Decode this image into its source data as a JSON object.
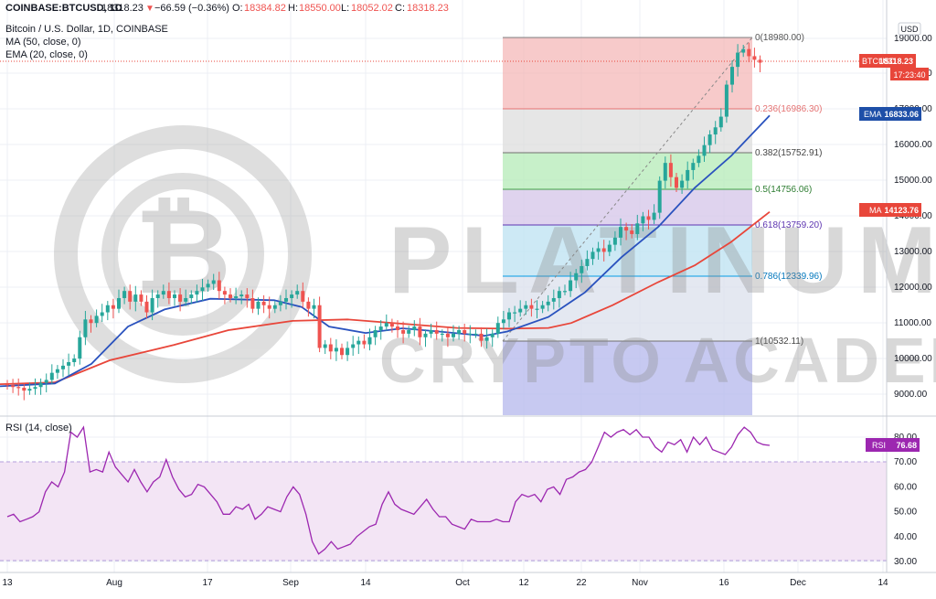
{
  "header": {
    "symbol": "COINBASE:BTCUSD, 1D",
    "last_label": "18318.23",
    "change_text": "−66.59 (−0.36%)",
    "open_label": "O:",
    "open_value": "18384.82",
    "high_label": "H:",
    "high_value": "18550.00",
    "low_label": "L:",
    "low_value": "18052.02",
    "close_label": "C:",
    "close_value": "18318.23",
    "title": "Bitcoin / U.S. Dollar, 1D, COINBASE",
    "ma_label": "MA (50, close, 0)",
    "ema_label": "EMA (20, close, 0)",
    "rsi_label": "RSI (14, close)"
  },
  "price_axis": {
    "unit_label": "USD",
    "ticks": [
      "19000.00",
      "18000.00",
      "17000.00",
      "16000.00",
      "15000.00",
      "14000.00",
      "13000.00",
      "12000.00",
      "11000.00",
      "10000.00",
      "9000.00"
    ],
    "tags": {
      "last_symbol": "BTCUSD",
      "last_value": "18318.23",
      "countdown": "17:23:40",
      "ema_label": "EMA",
      "ema_value": "16833.06",
      "ma_label": "MA",
      "ma_value": "14123.76"
    }
  },
  "rsi_axis": {
    "ticks": [
      "80.00",
      "70.00",
      "60.00",
      "50.00",
      "40.00",
      "30.00"
    ],
    "tag_label": "RSI",
    "tag_value": "76.68"
  },
  "time_axis": {
    "labels": [
      "13",
      "Aug",
      "17",
      "Sep",
      "14",
      "Oct",
      "12",
      "22",
      "Nov",
      "16",
      "Dec",
      "14"
    ]
  },
  "fib_labels": {
    "f0": "0(18980.00)",
    "f236": "0.236(16986.30)",
    "f382": "0.382(15752.91)",
    "f5": "0.5(14756.06)",
    "f618": "0.618(13759.20)",
    "f786": "0.786(12339.96)",
    "f1": "1(10532.11)"
  },
  "watermark": {
    "line1": "PLATINUM",
    "line2": "CRYPTO ACADEMY"
  },
  "colors": {
    "up": "#26a69a",
    "down": "#ef5350",
    "ma": "#e8463a",
    "ema": "#2a52be",
    "rsi": "#9c27b0",
    "rsi_band": "#f3e5f5",
    "tag_red": "#e8463a",
    "tag_blue": "#1e4fa8"
  },
  "chart_data": {
    "type": "candlestick",
    "title": "Bitcoin / U.S. Dollar, 1D, COINBASE",
    "x_range": [
      "2020-07-13",
      "2020-12-14"
    ],
    "y_range": [
      8500,
      19300
    ],
    "candle_closes": [
      9250,
      9200,
      9180,
      9100,
      9150,
      9200,
      9320,
      9400,
      9600,
      9700,
      9800,
      9900,
      10000,
      10600,
      11100,
      11000,
      11200,
      11300,
      11500,
      11400,
      11700,
      11900,
      11600,
      11800,
      11600,
      11300,
      11700,
      11800,
      11900,
      11700,
      11800,
      11600,
      11700,
      11800,
      11900,
      12000,
      12100,
      12200,
      11900,
      11800,
      11700,
      11750,
      11800,
      11700,
      11400,
      11600,
      11500,
      11400,
      11500,
      11600,
      11700,
      11800,
      11900,
      11600,
      11400,
      11500,
      10300,
      10400,
      10200,
      10300,
      10100,
      10300,
      10400,
      10500,
      10400,
      10600,
      10800,
      10900,
      11000,
      10900,
      10800,
      10700,
      10800,
      10900,
      10600,
      10700,
      10800,
      10700,
      10700,
      10600,
      10700,
      10800,
      10700,
      10700,
      10700,
      10500,
      10600,
      10700,
      11000,
      11100,
      11300,
      11300,
      11400,
      11500,
      11400,
      11400,
      11500,
      11600,
      11700,
      11900,
      11900,
      12200,
      12400,
      12600,
      12800,
      13000,
      13100,
      13000,
      13200,
      13400,
      13700,
      13600,
      13500,
      13800,
      14000,
      13900,
      14100,
      15000,
      15500,
      15100,
      14800,
      15000,
      15300,
      15500,
      15700,
      16000,
      16300,
      16500,
      16800,
      17700,
      18200,
      18600,
      18700,
      18500,
      18400,
      18318.23
    ],
    "ma50_points": [
      [
        0,
        9280
      ],
      [
        60,
        9330
      ],
      [
        120,
        9950
      ],
      [
        190,
        10380
      ],
      [
        250,
        10800
      ],
      [
        320,
        11060
      ],
      [
        380,
        11100
      ],
      [
        440,
        10980
      ],
      [
        500,
        10860
      ],
      [
        555,
        10840
      ],
      [
        600,
        10860
      ],
      [
        625,
        11000
      ],
      [
        670,
        11500
      ],
      [
        720,
        12150
      ],
      [
        760,
        12620
      ],
      [
        800,
        13280
      ],
      [
        842,
        14124
      ]
    ],
    "ema20_points": [
      [
        0,
        9220
      ],
      [
        60,
        9300
      ],
      [
        100,
        9850
      ],
      [
        140,
        10900
      ],
      [
        180,
        11380
      ],
      [
        230,
        11680
      ],
      [
        300,
        11640
      ],
      [
        330,
        11450
      ],
      [
        360,
        10900
      ],
      [
        400,
        10720
      ],
      [
        440,
        10850
      ],
      [
        480,
        10760
      ],
      [
        530,
        10640
      ],
      [
        555,
        10760
      ],
      [
        600,
        11170
      ],
      [
        640,
        11860
      ],
      [
        680,
        12850
      ],
      [
        720,
        13700
      ],
      [
        760,
        14800
      ],
      [
        800,
        15700
      ],
      [
        842,
        16833
      ]
    ],
    "fibonacci": {
      "from": 10532.11,
      "to": 18980.0,
      "levels": [
        [
          0,
          18980.0
        ],
        [
          0.236,
          16986.3
        ],
        [
          0.382,
          15752.91
        ],
        [
          0.5,
          14756.06
        ],
        [
          0.618,
          13759.2
        ],
        [
          0.786,
          12339.96
        ],
        [
          1,
          10532.11
        ]
      ]
    },
    "rsi_range": [
      25,
      86
    ],
    "rsi_values": [
      48,
      49,
      46,
      47,
      48,
      50,
      58,
      62,
      60,
      66,
      82,
      80,
      84,
      66,
      67,
      66,
      74,
      68,
      65,
      62,
      67,
      62,
      58,
      62,
      64,
      71,
      64,
      59,
      56,
      57,
      61,
      60,
      57,
      54,
      49,
      49,
      52,
      51,
      53,
      47,
      49,
      52,
      51,
      50,
      56,
      60,
      57,
      49,
      38,
      33,
      35,
      38,
      35,
      36,
      37,
      40,
      42,
      44,
      45,
      53,
      58,
      53,
      51,
      50,
      49,
      52,
      55,
      51,
      48,
      48,
      45,
      44,
      43,
      47,
      46,
      46,
      46,
      47,
      46,
      46,
      54,
      57,
      56,
      57,
      54,
      59,
      60,
      57,
      63,
      64,
      66,
      67,
      70,
      76,
      82,
      80,
      82,
      83,
      81,
      83,
      80,
      80,
      76,
      74,
      78,
      77,
      79,
      74,
      80,
      77,
      80,
      75,
      74,
      73,
      76,
      81,
      84,
      82,
      78,
      77,
      76.68
    ],
    "rsi_last": 76.68,
    "rsi_band": [
      30,
      70
    ]
  }
}
